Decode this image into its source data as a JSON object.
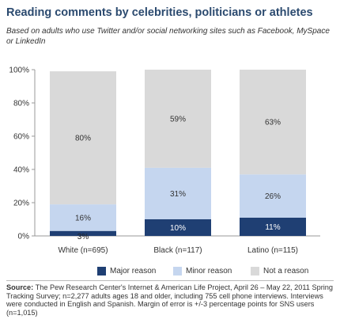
{
  "header": {
    "title": "Reading comments by celebrities, politicians or athletes",
    "subtitle": "Based on adults who use Twitter and/or social networking sites such as Facebook, MySpace or LinkedIn"
  },
  "chart_data": {
    "type": "bar",
    "stacked": true,
    "categories": [
      "White (n=695)",
      "Black (n=117)",
      "Latino (n=115)"
    ],
    "series": [
      {
        "name": "Major reason",
        "values": [
          3,
          10,
          11
        ],
        "color": "#1f3f73",
        "labels": [
          "3%",
          "10%",
          "11%"
        ]
      },
      {
        "name": "Minor reason",
        "values": [
          16,
          31,
          26
        ],
        "color": "#c5d6ef",
        "labels": [
          "16%",
          "31%",
          "26%"
        ]
      },
      {
        "name": "Not a reason",
        "values": [
          80,
          59,
          63
        ],
        "color": "#d9d9d9",
        "labels": [
          "80%",
          "59%",
          "63%"
        ]
      }
    ],
    "ylim": [
      0,
      100
    ],
    "yticks": [
      0,
      20,
      40,
      60,
      80,
      100
    ],
    "ytick_labels": [
      "0%",
      "20%",
      "40%",
      "60%",
      "80%",
      "100%"
    ],
    "legend_position": "bottom",
    "grid": false
  },
  "legend": {
    "items": [
      {
        "label": "Major reason",
        "color": "#1f3f73"
      },
      {
        "label": "Minor reason",
        "color": "#c5d6ef"
      },
      {
        "label": "Not a reason",
        "color": "#d9d9d9"
      }
    ]
  },
  "note": {
    "source_label": "Source:",
    "source_text": "The Pew Research Center's Internet & American Life Project, April 26 – May 22, 2011 Spring Tracking Survey; n=2,277 adults ages 18 and older, including 755 cell phone interviews. Interviews were conducted in English and Spanish. Margin of error is +/-3 percentage points for SNS users (n=1,015)"
  }
}
